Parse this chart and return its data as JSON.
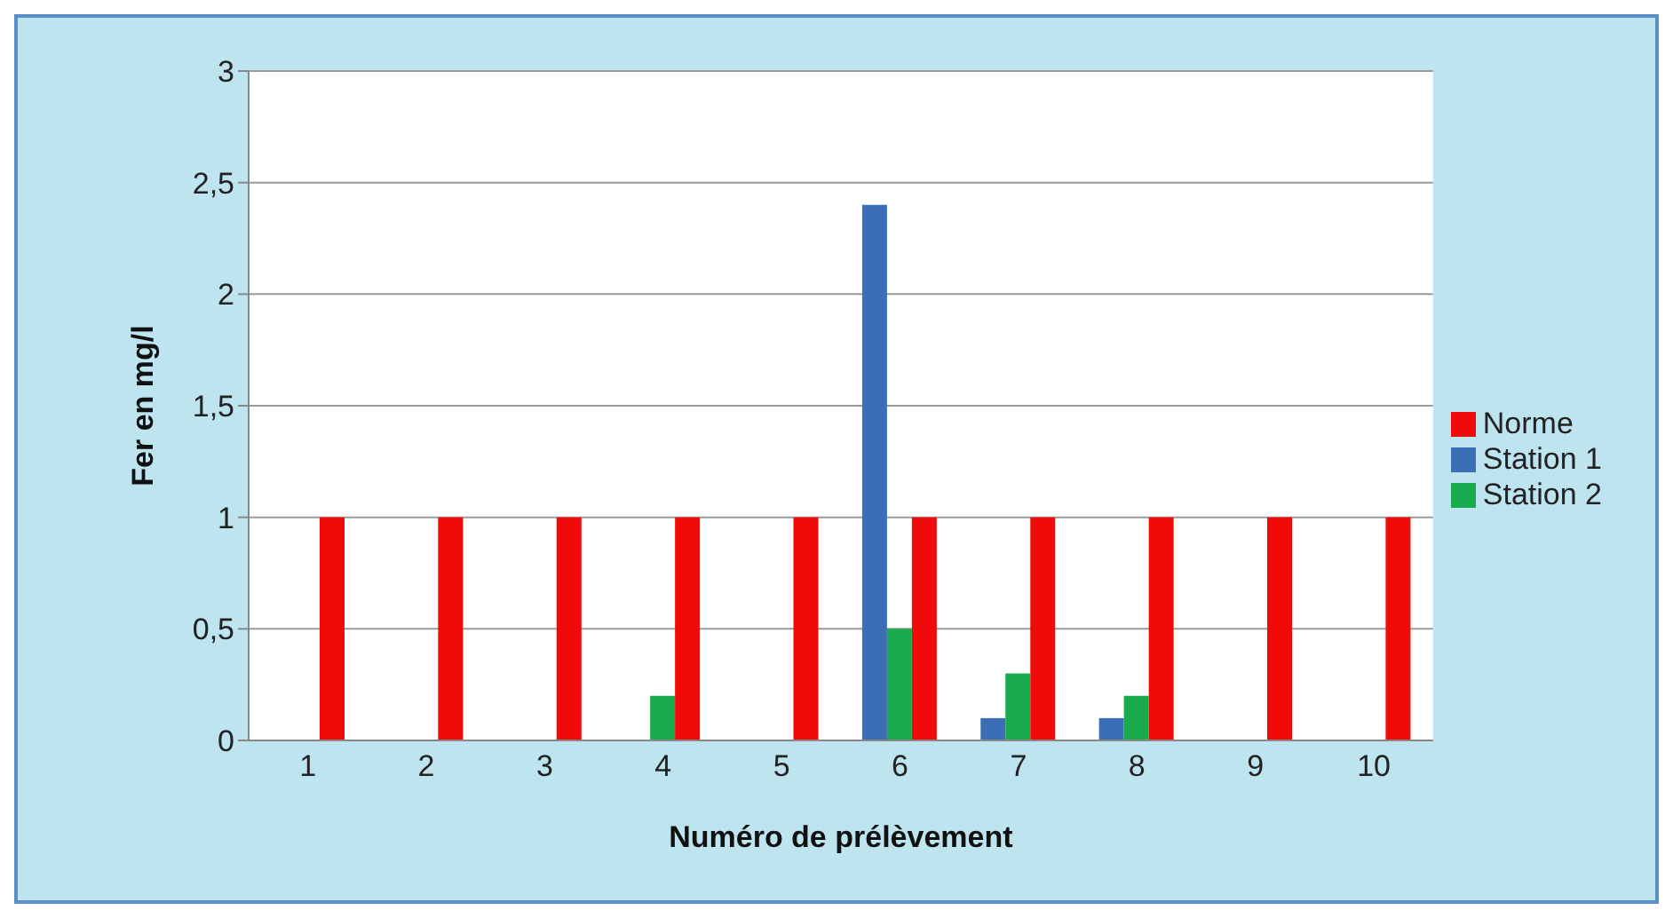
{
  "chart_data": {
    "type": "bar",
    "xlabel": "Numéro de prélèvement",
    "ylabel": "Fer en mg/l",
    "categories": [
      "1",
      "2",
      "3",
      "4",
      "5",
      "6",
      "7",
      "8",
      "9",
      "10"
    ],
    "series": [
      {
        "name": "Station 1",
        "color": "#3a6fb5",
        "values": [
          null,
          null,
          null,
          null,
          null,
          2.4,
          0.1,
          0.1,
          null,
          null
        ]
      },
      {
        "name": "Station 2",
        "color": "#1aab4f",
        "values": [
          null,
          null,
          null,
          0.2,
          null,
          0.5,
          0.3,
          0.2,
          null,
          null
        ]
      },
      {
        "name": "Norme",
        "color": "#f00a0a",
        "values": [
          1,
          1,
          1,
          1,
          1,
          1,
          1,
          1,
          1,
          1
        ]
      }
    ],
    "ylim": [
      0,
      3
    ],
    "yticks": [
      0,
      {
        "value": 0.5,
        "label": "0,5"
      },
      1,
      {
        "value": 1.5,
        "label": "1,5"
      },
      2,
      {
        "value": 2.5,
        "label": "2,5"
      },
      3
    ],
    "grid": "y",
    "legend": "right"
  }
}
